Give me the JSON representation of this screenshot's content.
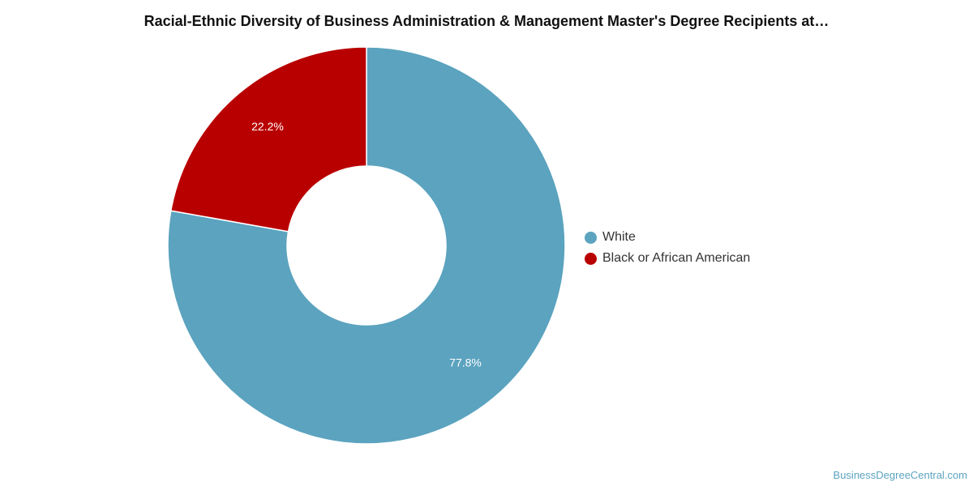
{
  "chart_data": {
    "type": "pie",
    "title": "Racial-Ethnic Diversity of Business Administration & Management Master's Degree Recipients at…",
    "donut": true,
    "categories": [
      "White",
      "Black or African American"
    ],
    "values": [
      77.8,
      22.2
    ],
    "data_labels": [
      "77.8%",
      "22.2%"
    ],
    "colors": [
      "#5ba3bf",
      "#b90000"
    ],
    "legend_position": "right"
  },
  "watermark": "BusinessDegreeCentral.com"
}
